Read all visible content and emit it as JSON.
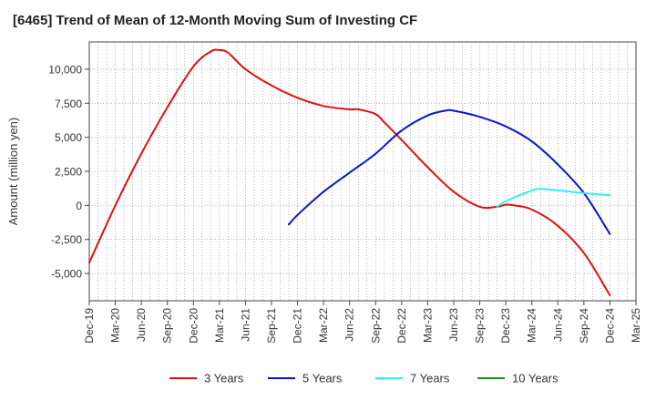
{
  "chart_data": {
    "type": "line",
    "title": "[6465]  Trend of Mean of 12-Month Moving Sum of Investing CF",
    "xlabel": "",
    "ylabel": "Amount (million yen)",
    "ylim": [
      -7000,
      12000
    ],
    "yticks": [
      -5000,
      -2500,
      0,
      2500,
      5000,
      7500,
      10000
    ],
    "ytick_labels": [
      "-5,000",
      "-2,500",
      "0",
      "2,500",
      "5,000",
      "7,500",
      "10,000"
    ],
    "xticks": [
      "Dec-19",
      "Mar-20",
      "Jun-20",
      "Sep-20",
      "Dec-20",
      "Mar-21",
      "Jun-21",
      "Sep-21",
      "Dec-21",
      "Mar-22",
      "Jun-22",
      "Sep-22",
      "Dec-22",
      "Mar-23",
      "Jun-23",
      "Sep-23",
      "Dec-23",
      "Mar-24",
      "Jun-24",
      "Sep-24",
      "Dec-24",
      "Mar-25"
    ],
    "grid": true,
    "legend_position": "bottom",
    "series": [
      {
        "name": "3 Years",
        "color": "#dd1111",
        "points": [
          [
            "Dec-19",
            -4200
          ],
          [
            "Mar-20",
            0
          ],
          [
            "Jun-20",
            3800
          ],
          [
            "Sep-20",
            7200
          ],
          [
            "Dec-20",
            10200
          ],
          [
            "Feb-21",
            11300
          ],
          [
            "Mar-21",
            11400
          ],
          [
            "Apr-21",
            11200
          ],
          [
            "Jun-21",
            10000
          ],
          [
            "Sep-21",
            8800
          ],
          [
            "Dec-21",
            7900
          ],
          [
            "Mar-22",
            7300
          ],
          [
            "Jun-22",
            7050
          ],
          [
            "Jul-22",
            7050
          ],
          [
            "Sep-22",
            6700
          ],
          [
            "Oct-22",
            6100
          ],
          [
            "Dec-22",
            4800
          ],
          [
            "Mar-23",
            2800
          ],
          [
            "Jun-23",
            1000
          ],
          [
            "Sep-23",
            -100
          ],
          [
            "Nov-23",
            -100
          ],
          [
            "Dec-23",
            50
          ],
          [
            "Jan-24",
            0
          ],
          [
            "Mar-24",
            -300
          ],
          [
            "Jun-24",
            -1500
          ],
          [
            "Sep-24",
            -3500
          ],
          [
            "Dec-24",
            -6600
          ]
        ]
      },
      {
        "name": "5 Years",
        "color": "#0a14cc",
        "points": [
          [
            "Nov-21",
            -1400
          ],
          [
            "Dec-21",
            -700
          ],
          [
            "Mar-22",
            1000
          ],
          [
            "Jun-22",
            2400
          ],
          [
            "Sep-22",
            3800
          ],
          [
            "Dec-22",
            5500
          ],
          [
            "Mar-23",
            6600
          ],
          [
            "May-23",
            6950
          ],
          [
            "Jun-23",
            6950
          ],
          [
            "Sep-23",
            6500
          ],
          [
            "Dec-23",
            5800
          ],
          [
            "Mar-24",
            4700
          ],
          [
            "Jun-24",
            3000
          ],
          [
            "Sep-24",
            900
          ],
          [
            "Dec-24",
            -2100
          ]
        ]
      },
      {
        "name": "7 Years",
        "color": "#33eeee",
        "points": [
          [
            "Nov-23",
            -100
          ],
          [
            "Dec-23",
            300
          ],
          [
            "Mar-24",
            1100
          ],
          [
            "Apr-24",
            1200
          ],
          [
            "Jun-24",
            1100
          ],
          [
            "Sep-24",
            900
          ],
          [
            "Dec-24",
            750
          ]
        ]
      },
      {
        "name": "10 Years",
        "color": "#228822",
        "points": []
      }
    ]
  }
}
